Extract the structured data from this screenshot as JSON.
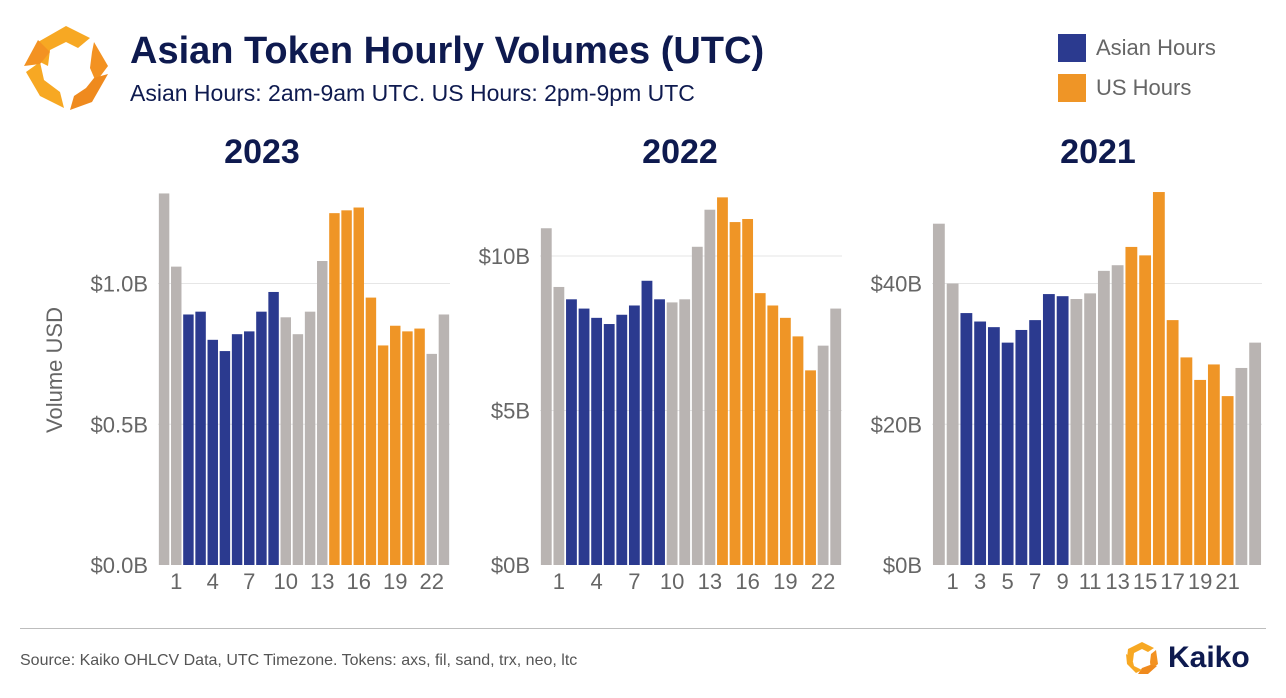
{
  "header": {
    "title": "Asian Token Hourly Volumes (UTC)",
    "subtitle": "Asian Hours: 2am-9am UTC. US Hours: 2pm-9pm UTC"
  },
  "legend": {
    "items": [
      {
        "label": "Asian Hours",
        "color": "#2b3a8f"
      },
      {
        "label": "US Hours",
        "color": "#ef9526"
      }
    ]
  },
  "colors": {
    "asian": "#2b3a8f",
    "us": "#ef9526",
    "other": "#b9b4b2",
    "gridline": "#e6e6e6"
  },
  "footer": {
    "source": "Source: Kaiko OHLCV Data, UTC Timezone. Tokens: axs, fil, sand, trx, neo, ltc",
    "brand": "Kaiko"
  },
  "chart_data": [
    {
      "type": "bar",
      "title": "2023",
      "ylabel": "Volume USD",
      "ylim": [
        0,
        1.35
      ],
      "yticks": [
        0,
        0.5,
        1.0
      ],
      "ytick_labels": [
        "$0.0B",
        "$0.5B",
        "$1.0B"
      ],
      "x": [
        0,
        1,
        2,
        3,
        4,
        5,
        6,
        7,
        8,
        9,
        10,
        11,
        12,
        13,
        14,
        15,
        16,
        17,
        18,
        19,
        20,
        21,
        22,
        23
      ],
      "xtick_values": [
        1,
        4,
        7,
        10,
        13,
        16,
        19,
        22
      ],
      "xtick_labels": [
        "1",
        "4",
        "7",
        "10",
        "13",
        "16",
        "19",
        "22"
      ],
      "values": [
        1.32,
        1.06,
        0.89,
        0.9,
        0.8,
        0.76,
        0.82,
        0.83,
        0.9,
        0.97,
        0.88,
        0.82,
        0.9,
        1.08,
        1.25,
        1.26,
        1.27,
        0.95,
        0.78,
        0.85,
        0.83,
        0.84,
        0.75,
        0.89
      ],
      "groups": [
        "other",
        "other",
        "asian",
        "asian",
        "asian",
        "asian",
        "asian",
        "asian",
        "asian",
        "asian",
        "other",
        "other",
        "other",
        "other",
        "us",
        "us",
        "us",
        "us",
        "us",
        "us",
        "us",
        "us",
        "other",
        "other"
      ],
      "grid": true
    },
    {
      "type": "bar",
      "title": "2022",
      "ylim": [
        0,
        12.3
      ],
      "yticks": [
        0,
        5,
        10
      ],
      "ytick_labels": [
        "$0B",
        "$5B",
        "$10B"
      ],
      "x": [
        0,
        1,
        2,
        3,
        4,
        5,
        6,
        7,
        8,
        9,
        10,
        11,
        12,
        13,
        14,
        15,
        16,
        17,
        18,
        19,
        20,
        21,
        22,
        23
      ],
      "xtick_values": [
        1,
        4,
        7,
        10,
        13,
        16,
        19,
        22
      ],
      "xtick_labels": [
        "1",
        "4",
        "7",
        "10",
        "13",
        "16",
        "19",
        "22"
      ],
      "values": [
        10.9,
        9.0,
        8.6,
        8.3,
        8.0,
        7.8,
        8.1,
        8.4,
        9.2,
        8.6,
        8.5,
        8.6,
        10.3,
        11.5,
        11.9,
        11.1,
        11.2,
        8.8,
        8.4,
        8.0,
        7.4,
        6.3,
        7.1,
        8.3
      ],
      "groups": [
        "other",
        "other",
        "asian",
        "asian",
        "asian",
        "asian",
        "asian",
        "asian",
        "asian",
        "asian",
        "other",
        "other",
        "other",
        "other",
        "us",
        "us",
        "us",
        "us",
        "us",
        "us",
        "us",
        "us",
        "other",
        "other"
      ],
      "grid": true
    },
    {
      "type": "bar",
      "title": "2021",
      "ylim": [
        0,
        54
      ],
      "yticks": [
        0,
        20,
        40
      ],
      "ytick_labels": [
        "$0B",
        "$20B",
        "$40B"
      ],
      "x": [
        0,
        1,
        2,
        3,
        4,
        5,
        6,
        7,
        8,
        9,
        10,
        11,
        12,
        13,
        14,
        15,
        16,
        17,
        18,
        19,
        20,
        21,
        22,
        23
      ],
      "xtick_values": [
        1,
        3,
        5,
        7,
        9,
        11,
        13,
        15,
        17,
        19,
        21
      ],
      "xtick_labels": [
        "1",
        "3",
        "5",
        "7",
        "9",
        "11",
        "13",
        "15",
        "17",
        "19",
        "21"
      ],
      "values": [
        48.5,
        40.0,
        35.8,
        34.6,
        33.8,
        31.6,
        33.4,
        34.8,
        38.5,
        38.2,
        37.8,
        38.6,
        41.8,
        42.6,
        45.2,
        44.0,
        53.0,
        34.8,
        29.5,
        26.3,
        28.5,
        24.0,
        28.0,
        31.6
      ],
      "groups": [
        "other",
        "other",
        "asian",
        "asian",
        "asian",
        "asian",
        "asian",
        "asian",
        "asian",
        "asian",
        "other",
        "other",
        "other",
        "other",
        "us",
        "us",
        "us",
        "us",
        "us",
        "us",
        "us",
        "us",
        "other",
        "other"
      ],
      "grid": true
    }
  ]
}
